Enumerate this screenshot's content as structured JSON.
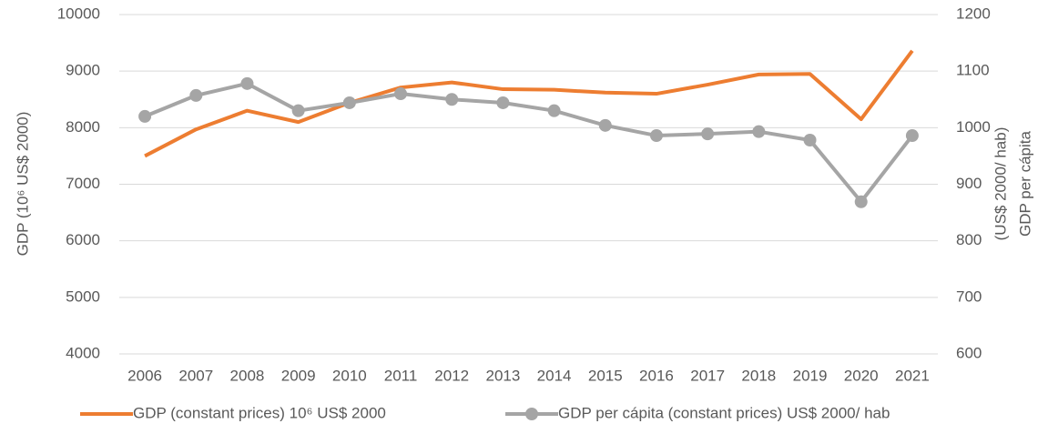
{
  "chart_data": {
    "type": "line",
    "categories": [
      "2006",
      "2007",
      "2008",
      "2009",
      "2010",
      "2011",
      "2012",
      "2013",
      "2014",
      "2015",
      "2016",
      "2017",
      "2018",
      "2019",
      "2020",
      "2021"
    ],
    "ylabel": "GDP (10⁶ US$ 2000)",
    "y2label": [
      "GDP per cápita",
      "(US$ 2000/ hab)"
    ],
    "ylim": [
      4000,
      10000
    ],
    "yticks": [
      4000,
      5000,
      6000,
      7000,
      8000,
      9000,
      10000
    ],
    "y2lim": [
      600,
      1200
    ],
    "y2ticks": [
      600,
      700,
      800,
      900,
      1000,
      1100,
      1200
    ],
    "grid": true,
    "legend": "bottom",
    "series": [
      {
        "name": "GDP (constant prices) 10⁶ US$ 2000",
        "color": "#ed7d31",
        "markers": false,
        "values": [
          7500,
          7970,
          8300,
          8100,
          8440,
          8710,
          8800,
          8680,
          8670,
          8620,
          8600,
          8760,
          8940,
          8950,
          8150,
          9360
        ]
      },
      {
        "name": "GDP per cápita (constant prices) US$ 2000/ hab",
        "color": "#a5a5a5",
        "markers": true,
        "axis": "y2",
        "values": [
          1020,
          1057,
          1078,
          1030,
          1044,
          1060,
          1050,
          1044,
          1030,
          1004,
          986,
          989,
          993,
          978,
          869,
          986
        ]
      }
    ]
  }
}
